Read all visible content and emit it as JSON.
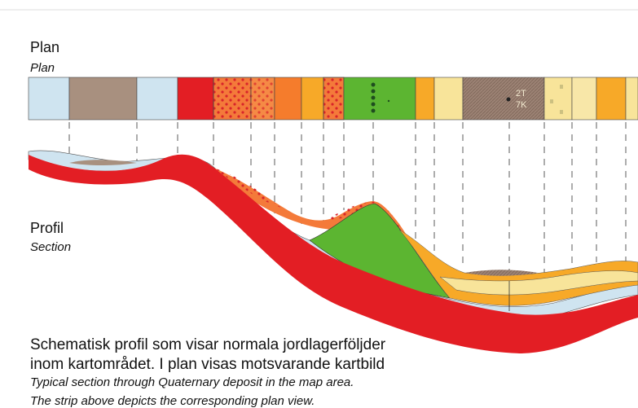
{
  "plan": {
    "title": "Plan",
    "subtitle": "Plan",
    "symbol_line1": "2T",
    "symbol_line2": "7K"
  },
  "section": {
    "title": "Profil",
    "subtitle": "Section"
  },
  "caption": {
    "line1": "Schematisk profil som visar normala jordlagerföljder",
    "line2": "inom kartområdet. I plan visas motsvarande kartbild",
    "line3": "Typical section through Quaternary deposit in the map area.",
    "line4": "The strip above depicts the corresponding plan view."
  }
}
